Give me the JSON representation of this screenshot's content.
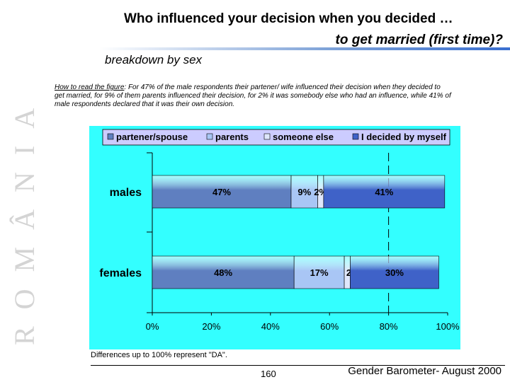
{
  "side_label": "ROMÂNIA",
  "title": {
    "line1": "Who influenced your decision when you decided …",
    "line2": "to get married (first time)?"
  },
  "subtitle": "breakdown by sex",
  "howto": {
    "label": "How to read the figure",
    "text": ": For 47% of the male respondents their  partener/ wife influenced their decision when they decided to get married, for 9% of them parents influenced their decision, for 2% it was somebody else who had an influence, while 41% of male respondents declared that it was their own decision."
  },
  "chart_data": {
    "type": "bar",
    "orientation": "horizontal",
    "stacked": true,
    "categories": [
      "males",
      "females"
    ],
    "series": [
      {
        "name": "partener/spouse",
        "values": [
          47,
          48
        ],
        "value_labels": [
          "47%",
          "48%"
        ],
        "color": "#5f7fc0"
      },
      {
        "name": "parents",
        "values": [
          9,
          17
        ],
        "value_labels": [
          "9%",
          "17%"
        ],
        "color": "#a9c6f5"
      },
      {
        "name": "someone else",
        "values": [
          2,
          2
        ],
        "value_labels": [
          "2%",
          "2%"
        ],
        "color": "#dfe7fb"
      },
      {
        "name": "I decided by myself",
        "values": [
          41,
          30
        ],
        "value_labels": [
          "41%",
          "30%"
        ],
        "color": "#3f62c8"
      }
    ],
    "xlim": [
      0,
      100
    ],
    "xticks": [
      "0%",
      "20%",
      "40%",
      "60%",
      "80%",
      "100%"
    ],
    "reference_line": 80,
    "legend_position": "top",
    "background": "#33ffff",
    "legend_background": "#ccccff"
  },
  "footnote": "Differences up to 100% represent \"DA\".",
  "page_number": "160",
  "source": "Gender Barometer- August 2000"
}
